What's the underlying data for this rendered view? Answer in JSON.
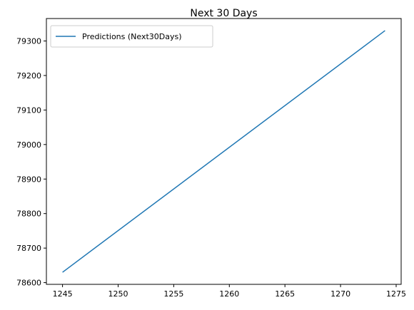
{
  "chart_data": {
    "type": "line",
    "title": "Next 30 Days",
    "xlabel": "",
    "ylabel": "",
    "xlim": [
      1243.55,
      1275.45
    ],
    "ylim": [
      78595,
      79365
    ],
    "x_ticks": [
      1245,
      1250,
      1255,
      1260,
      1265,
      1270,
      1275
    ],
    "y_ticks": [
      78600,
      78700,
      78800,
      78900,
      79000,
      79100,
      79200,
      79300
    ],
    "grid": false,
    "legend_position": "top-left",
    "series": [
      {
        "name": "Predictions (Next30Days)",
        "color": "#1f77b4",
        "x": [
          1245,
          1274
        ],
        "y": [
          78630,
          79330
        ]
      }
    ]
  }
}
